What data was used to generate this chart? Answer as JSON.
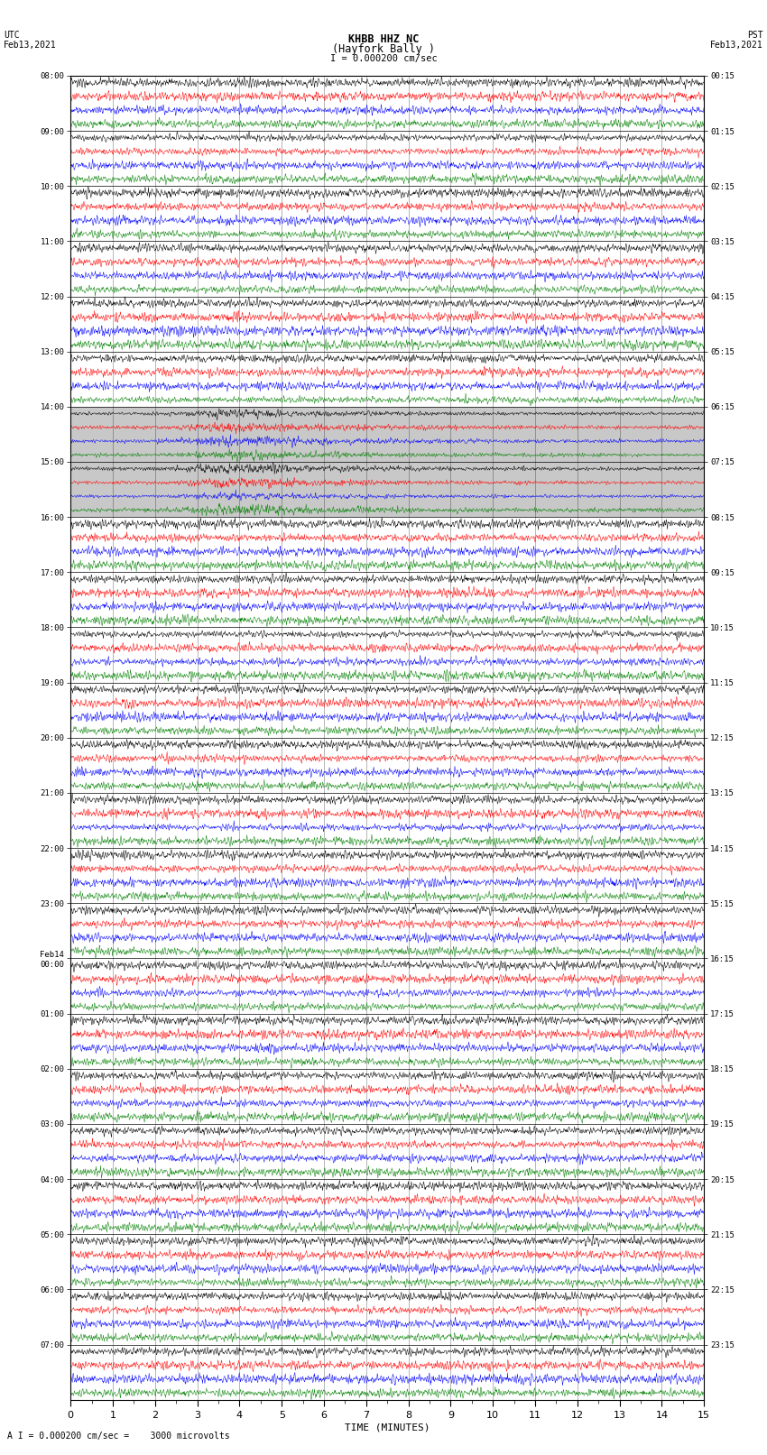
{
  "title_line1": "KHBB HHZ NC",
  "title_line2": "(Hayfork Bally )",
  "scale_label": "I = 0.000200 cm/sec",
  "bottom_label": "A I = 0.000200 cm/sec =    3000 microvolts",
  "xlabel": "TIME (MINUTES)",
  "left_header_line1": "UTC",
  "left_header_line2": "Feb13,2021",
  "right_header_line1": "PST",
  "right_header_line2": "Feb13,2021",
  "left_times": [
    "08:00",
    "09:00",
    "10:00",
    "11:00",
    "12:00",
    "13:00",
    "14:00",
    "15:00",
    "16:00",
    "17:00",
    "18:00",
    "19:00",
    "20:00",
    "21:00",
    "22:00",
    "23:00",
    "Feb14\n00:00",
    "01:00",
    "02:00",
    "03:00",
    "04:00",
    "05:00",
    "06:00",
    "07:00"
  ],
  "right_times": [
    "00:15",
    "01:15",
    "02:15",
    "03:15",
    "04:15",
    "05:15",
    "06:15",
    "07:15",
    "08:15",
    "09:15",
    "10:15",
    "11:15",
    "12:15",
    "13:15",
    "14:15",
    "15:15",
    "16:15",
    "17:15",
    "18:15",
    "19:15",
    "20:15",
    "21:15",
    "22:15",
    "23:15"
  ],
  "colors": [
    "black",
    "red",
    "blue",
    "green"
  ],
  "n_rows": 24,
  "traces_per_row": 4,
  "minutes": 15,
  "fig_width": 8.5,
  "fig_height": 16.13,
  "background_color": "white",
  "eq_rows": [
    6,
    7
  ],
  "highlight_color": "#c8c8c8",
  "gridline_color": "#000000",
  "gridline_alpha": 1.0,
  "gridline_lw": 0.5
}
